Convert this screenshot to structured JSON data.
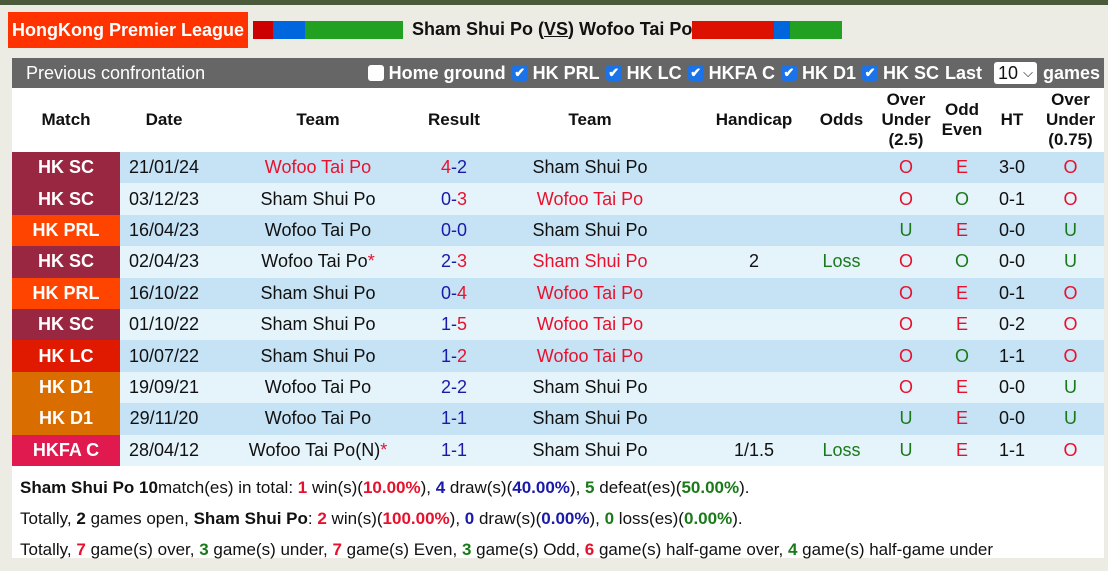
{
  "header": {
    "league": "HongKong Premier League",
    "home": "Sham Shui Po",
    "vs": "VS",
    "away": "Wofoo Tai Po"
  },
  "form_bars": {
    "home": [
      "#cc0000",
      "#0066dd",
      "#22a022"
    ],
    "away": [
      "#dd1100",
      "#0066dd",
      "#22a022"
    ]
  },
  "filters": {
    "title": "Previous confrontation",
    "options": [
      {
        "label": "Home ground",
        "checked": false
      },
      {
        "label": "HK PRL",
        "checked": true
      },
      {
        "label": "HK LC",
        "checked": true
      },
      {
        "label": "HKFA C",
        "checked": true
      },
      {
        "label": "HK D1",
        "checked": true
      },
      {
        "label": "HK SC",
        "checked": true
      }
    ],
    "last_label": "Last",
    "last_value": "10",
    "games_label": "games"
  },
  "columns": [
    "Match",
    "Date",
    "Team",
    "Result",
    "Team",
    "Handicap",
    "Odds",
    "Over Under (2.5)",
    "Odd Even",
    "HT",
    "Over Under (0.75)"
  ],
  "league_colors": {
    "HK SC": "#9a2742",
    "HK PRL": "#ff4400",
    "HK LC": "#e01a00",
    "HK D1": "#d96d00",
    "HKFA C": "#e0194f"
  },
  "rows": [
    {
      "match": "HK SC",
      "date": "21/01/24",
      "home": "Wofoo Tai Po",
      "hs": "4",
      "as": "2",
      "away": "Sham Shui Po",
      "handicap": "",
      "odds": "",
      "ou": "O",
      "oe": "E",
      "ht": "3-0",
      "ou2": "O"
    },
    {
      "match": "HK SC",
      "date": "03/12/23",
      "home": "Sham Shui Po",
      "hs": "0",
      "as": "3",
      "away": "Wofoo Tai Po",
      "handicap": "",
      "odds": "",
      "ou": "O",
      "oe": "O",
      "ht": "0-1",
      "ou2": "O"
    },
    {
      "match": "HK PRL",
      "date": "16/04/23",
      "home": "Wofoo Tai Po",
      "hs": "0",
      "as": "0",
      "away": "Sham Shui Po",
      "handicap": "",
      "odds": "",
      "ou": "U",
      "oe": "E",
      "ht": "0-0",
      "ou2": "U"
    },
    {
      "match": "HK SC",
      "date": "02/04/23",
      "home": "Wofoo Tai Po",
      "mark": "*",
      "hs": "2",
      "as": "3",
      "away": "Sham Shui Po",
      "handicap": "2",
      "odds": "Loss",
      "ou": "O",
      "oe": "O",
      "ht": "0-0",
      "ou2": "U"
    },
    {
      "match": "HK PRL",
      "date": "16/10/22",
      "home": "Sham Shui Po",
      "hs": "0",
      "as": "4",
      "away": "Wofoo Tai Po",
      "handicap": "",
      "odds": "",
      "ou": "O",
      "oe": "E",
      "ht": "0-1",
      "ou2": "O"
    },
    {
      "match": "HK SC",
      "date": "01/10/22",
      "home": "Sham Shui Po",
      "hs": "1",
      "as": "5",
      "away": "Wofoo Tai Po",
      "handicap": "",
      "odds": "",
      "ou": "O",
      "oe": "E",
      "ht": "0-2",
      "ou2": "O"
    },
    {
      "match": "HK LC",
      "date": "10/07/22",
      "home": "Sham Shui Po",
      "hs": "1",
      "as": "2",
      "away": "Wofoo Tai Po",
      "handicap": "",
      "odds": "",
      "ou": "O",
      "oe": "O",
      "ht": "1-1",
      "ou2": "O"
    },
    {
      "match": "HK D1",
      "date": "19/09/21",
      "home": "Wofoo Tai Po",
      "hs": "2",
      "as": "2",
      "away": "Sham Shui Po",
      "handicap": "",
      "odds": "",
      "ou": "O",
      "oe": "E",
      "ht": "0-0",
      "ou2": "U"
    },
    {
      "match": "HK D1",
      "date": "29/11/20",
      "home": "Wofoo Tai Po",
      "hs": "1",
      "as": "1",
      "away": "Sham Shui Po",
      "handicap": "",
      "odds": "",
      "ou": "U",
      "oe": "E",
      "ht": "0-0",
      "ou2": "U"
    },
    {
      "match": "HKFA C",
      "date": "28/04/12",
      "home": "Wofoo Tai Po(N)",
      "mark": "*",
      "hs": "1",
      "as": "1",
      "away": "Sham Shui Po",
      "handicap": "1/1.5",
      "odds": "Loss",
      "ou": "U",
      "oe": "E",
      "ht": "1-1",
      "ou2": "O"
    }
  ],
  "summary": [
    [
      [
        "b",
        "Sham Shui Po 10"
      ],
      [
        "",
        "match(es) in total: "
      ],
      [
        "red",
        "1"
      ],
      [
        "",
        " win(s)("
      ],
      [
        "red",
        "10.00%"
      ],
      [
        "",
        "), "
      ],
      [
        "blue",
        "4"
      ],
      [
        "",
        " draw(s)("
      ],
      [
        "blue",
        "40.00%"
      ],
      [
        "",
        "), "
      ],
      [
        "green",
        "5"
      ],
      [
        "",
        " defeat(es)("
      ],
      [
        "green",
        "50.00%"
      ],
      [
        "",
        ")."
      ]
    ],
    [
      [
        "",
        "Totally, "
      ],
      [
        "b",
        "2"
      ],
      [
        "",
        " games open, "
      ],
      [
        "b",
        "Sham Shui Po"
      ],
      [
        "",
        ": "
      ],
      [
        "red",
        "2"
      ],
      [
        "",
        " win(s)("
      ],
      [
        "red",
        "100.00%"
      ],
      [
        "",
        "), "
      ],
      [
        "blue",
        "0"
      ],
      [
        "",
        " draw(s)("
      ],
      [
        "blue",
        "0.00%"
      ],
      [
        "",
        "), "
      ],
      [
        "green",
        "0"
      ],
      [
        "",
        " loss(es)("
      ],
      [
        "green",
        "0.00%"
      ],
      [
        "",
        ")."
      ]
    ],
    [
      [
        "",
        "Totally, "
      ],
      [
        "red",
        "7"
      ],
      [
        "",
        " game(s) over, "
      ],
      [
        "green",
        "3"
      ],
      [
        "",
        " game(s) under, "
      ],
      [
        "red",
        "7"
      ],
      [
        "",
        " game(s) Even, "
      ],
      [
        "green",
        "3"
      ],
      [
        "",
        " game(s) Odd, "
      ],
      [
        "red",
        "6"
      ],
      [
        "",
        " game(s) half-game over, "
      ],
      [
        "green",
        "4"
      ],
      [
        "",
        " game(s) half-game under"
      ]
    ]
  ]
}
